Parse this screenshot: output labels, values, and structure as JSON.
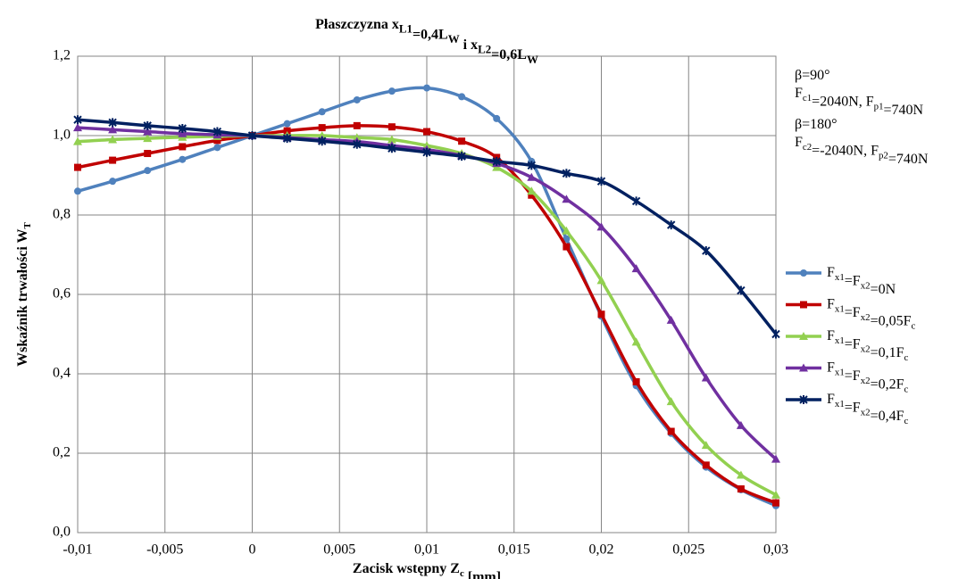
{
  "chart_data": {
    "type": "line",
    "title": [
      "Płaszczyzna x",
      {
        "sub": "L1"
      },
      "=0,4L",
      {
        "sub": "W"
      },
      " i x",
      {
        "sub": "L2"
      },
      "=0,6L",
      {
        "sub": "W"
      }
    ],
    "x_label": [
      "Zacisk wstępny Z",
      {
        "sub": "c"
      },
      " [mm]"
    ],
    "y_label": [
      "Wskaźnik trwałości W",
      {
        "sub": "T"
      }
    ],
    "annotations": [
      [
        "β=90°"
      ],
      [
        "F",
        {
          "sub": "c1"
        },
        "=2040N, F",
        {
          "sub": "p1"
        },
        "=740N"
      ],
      [
        "β=180°"
      ],
      [
        "F",
        {
          "sub": "c2"
        },
        "=-2040N, F",
        {
          "sub": "p2"
        },
        "=740N"
      ]
    ],
    "x": [
      -0.01,
      -0.008,
      -0.006,
      -0.004,
      -0.002,
      0,
      0.002,
      0.004,
      0.006,
      0.008,
      0.01,
      0.012,
      0.014,
      0.016,
      0.018,
      0.02,
      0.022,
      0.024,
      0.026,
      0.028,
      0.03
    ],
    "series": [
      {
        "name": [
          "F",
          {
            "sub": "x1"
          },
          "=F",
          {
            "sub": "x2"
          },
          "=0N"
        ],
        "color": "#4f81bd",
        "marker": "circle",
        "values": [
          0.86,
          0.885,
          0.912,
          0.94,
          0.97,
          1.0,
          1.03,
          1.06,
          1.09,
          1.112,
          1.12,
          1.098,
          1.043,
          0.935,
          0.74,
          0.545,
          0.37,
          0.25,
          0.165,
          0.108,
          0.068
        ]
      },
      {
        "name": [
          "F",
          {
            "sub": "x1"
          },
          "=F",
          {
            "sub": "x2"
          },
          "=0,05F",
          {
            "sub": "c"
          }
        ],
        "color": "#c00000",
        "marker": "square",
        "values": [
          0.92,
          0.938,
          0.955,
          0.972,
          0.988,
          1.0,
          1.012,
          1.02,
          1.025,
          1.022,
          1.01,
          0.986,
          0.945,
          0.85,
          0.72,
          0.55,
          0.38,
          0.255,
          0.17,
          0.11,
          0.075
        ]
      },
      {
        "name": [
          "F",
          {
            "sub": "x1"
          },
          "=F",
          {
            "sub": "x2"
          },
          "=0,1F",
          {
            "sub": "c"
          }
        ],
        "color": "#92d050",
        "marker": "triangle",
        "values": [
          0.985,
          0.99,
          0.993,
          0.996,
          0.998,
          1.0,
          1.0,
          1.0,
          0.995,
          0.99,
          0.975,
          0.955,
          0.92,
          0.86,
          0.76,
          0.635,
          0.48,
          0.33,
          0.22,
          0.145,
          0.095
        ]
      },
      {
        "name": [
          "F",
          {
            "sub": "x1"
          },
          "=F",
          {
            "sub": "x2"
          },
          "=0,2F",
          {
            "sub": "c"
          }
        ],
        "color": "#7030a0",
        "marker": "triangle",
        "values": [
          1.02,
          1.015,
          1.01,
          1.005,
          1.002,
          1.0,
          0.995,
          0.99,
          0.985,
          0.975,
          0.965,
          0.95,
          0.93,
          0.895,
          0.84,
          0.77,
          0.665,
          0.535,
          0.39,
          0.27,
          0.185
        ]
      },
      {
        "name": [
          "F",
          {
            "sub": "x1"
          },
          "=F",
          {
            "sub": "x2"
          },
          "=0,4F",
          {
            "sub": "c"
          }
        ],
        "color": "#002060",
        "marker": "star",
        "values": [
          1.04,
          1.033,
          1.025,
          1.018,
          1.01,
          1.0,
          0.993,
          0.986,
          0.978,
          0.968,
          0.958,
          0.948,
          0.935,
          0.925,
          0.905,
          0.885,
          0.835,
          0.775,
          0.71,
          0.61,
          0.5
        ]
      }
    ],
    "xlim": [
      -0.01,
      0.03
    ],
    "xticks": [
      {
        "value": -0.01,
        "label": "-0,01"
      },
      {
        "value": -0.005,
        "label": "-0,005"
      },
      0,
      {
        "value": 0.005,
        "label": "0,005"
      },
      {
        "value": 0.01,
        "label": "0,01"
      },
      {
        "value": 0.015,
        "label": "0,015"
      },
      {
        "value": 0.02,
        "label": "0,02"
      },
      {
        "value": 0.025,
        "label": "0,025"
      },
      {
        "value": 0.03,
        "label": "0,03"
      }
    ],
    "ylim": [
      0,
      1.2
    ],
    "yticks": [
      {
        "value": 0,
        "label": "0,0"
      },
      {
        "value": 0.2,
        "label": "0,2"
      },
      {
        "value": 0.4,
        "label": "0,4"
      },
      {
        "value": 0.6,
        "label": "0,6"
      },
      {
        "value": 0.8,
        "label": "0,8"
      },
      {
        "value": 1.0,
        "label": "1,0"
      },
      {
        "value": 1.2,
        "label": "1,2"
      }
    ],
    "grid": true,
    "legend": "right"
  }
}
